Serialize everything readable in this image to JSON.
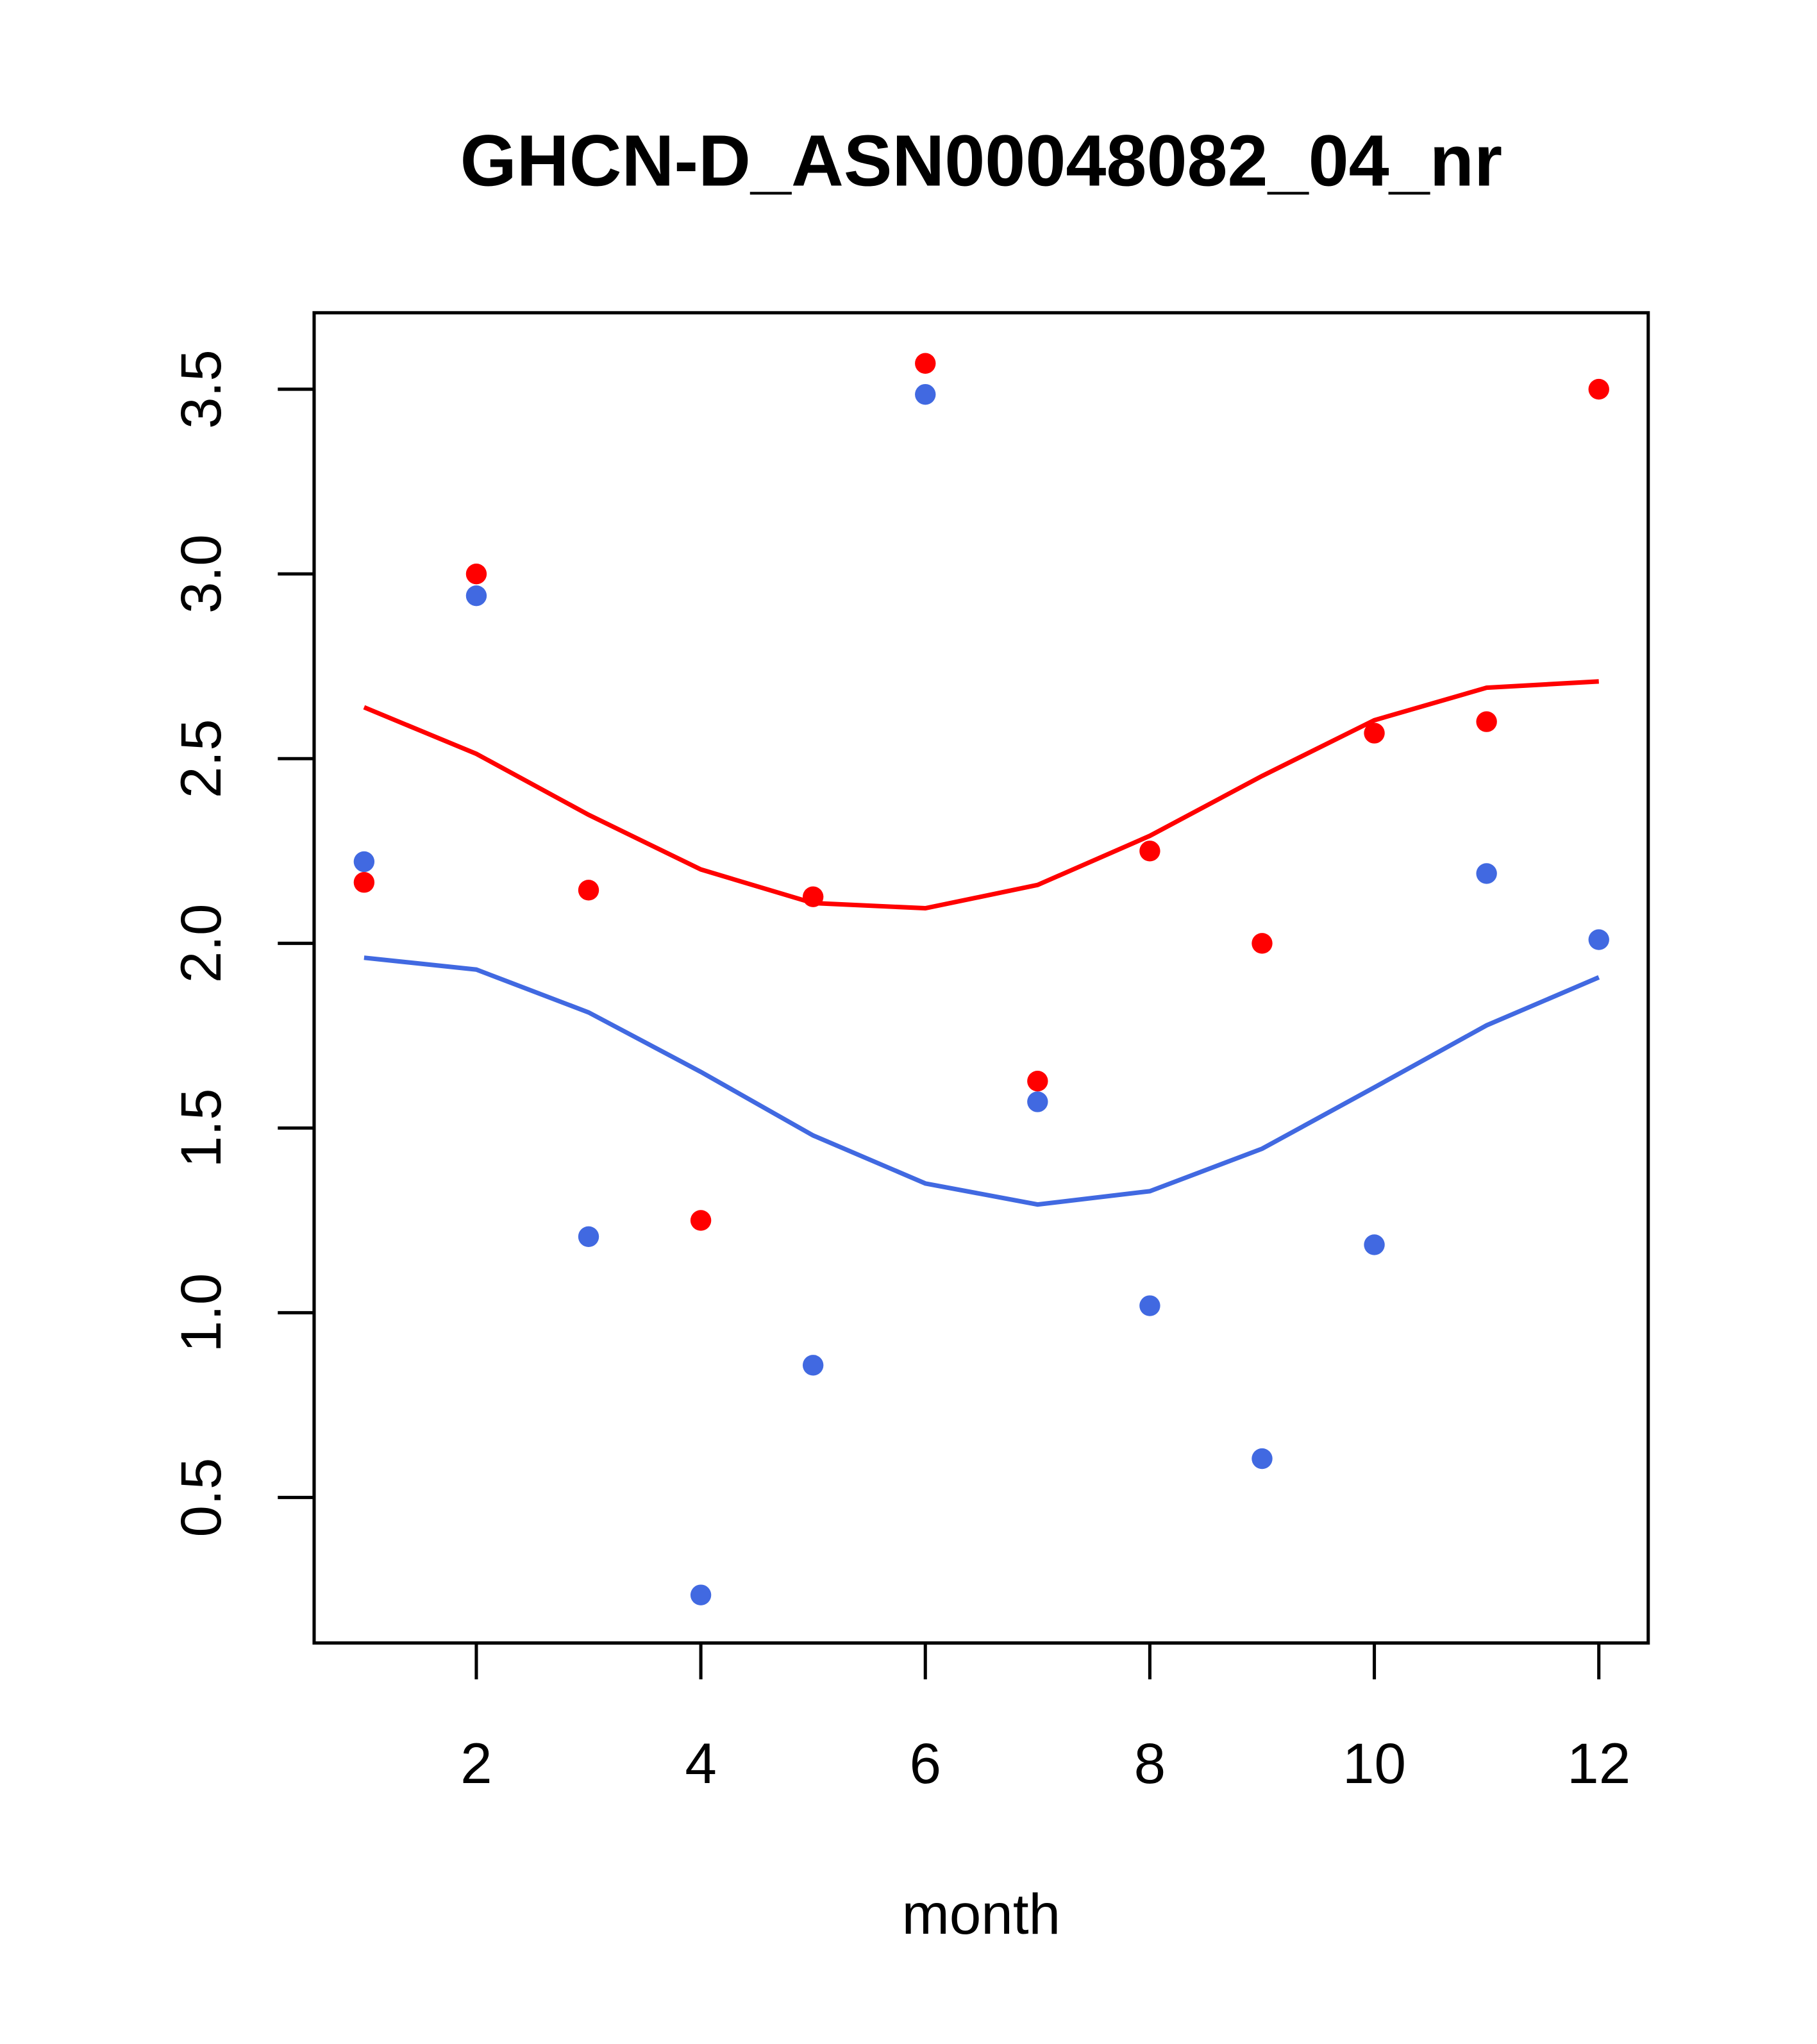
{
  "chart_data": {
    "type": "scatter",
    "title": "GHCN-D_ASN00048082_04_nr",
    "xlabel": "month",
    "ylabel": "",
    "xlim": [
      0.555,
      12.44
    ],
    "ylim": [
      0.106,
      3.707
    ],
    "xticks": [
      2,
      4,
      6,
      8,
      10,
      12
    ],
    "xtick_labels": [
      "2",
      "4",
      "6",
      "8",
      "10",
      "12"
    ],
    "yticks": [
      0.5,
      1.0,
      1.5,
      2.0,
      2.5,
      3.0,
      3.5
    ],
    "ytick_labels": [
      "0.5",
      "1.0",
      "1.5",
      "2.0",
      "2.5",
      "3.0",
      "3.5"
    ],
    "grid": false,
    "x": [
      1,
      2,
      3,
      4,
      5,
      6,
      7,
      8,
      9,
      10,
      11,
      12
    ],
    "series": [
      {
        "name": "red points",
        "kind": "points",
        "color": "#FF0000",
        "values": [
          2.165,
          3.0,
          2.144,
          1.25,
          2.126,
          3.57,
          1.627,
          2.25,
          2.0,
          2.569,
          2.6,
          3.5
        ]
      },
      {
        "name": "blue points",
        "kind": "points",
        "color": "#4169E1",
        "values": [
          2.221,
          2.941,
          1.206,
          0.236,
          0.858,
          3.486,
          1.571,
          1.019,
          0.605,
          1.184,
          2.189,
          2.01
        ]
      },
      {
        "name": "red line",
        "kind": "line",
        "color": "#FF0000",
        "values": [
          2.639,
          2.513,
          2.348,
          2.2,
          2.109,
          2.095,
          2.158,
          2.291,
          2.453,
          2.604,
          2.692,
          2.709
        ]
      },
      {
        "name": "blue line",
        "kind": "line",
        "color": "#4169E1",
        "values": [
          1.961,
          1.929,
          1.813,
          1.652,
          1.48,
          1.35,
          1.293,
          1.329,
          1.444,
          1.61,
          1.778,
          1.908
        ]
      }
    ]
  }
}
